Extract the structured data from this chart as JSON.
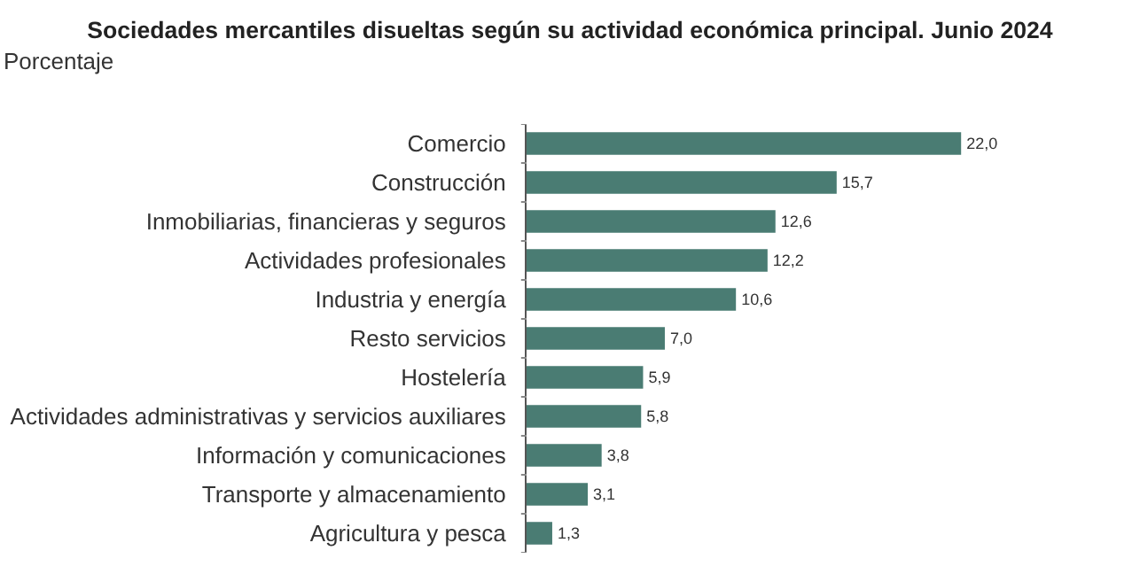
{
  "chart_data": {
    "type": "bar",
    "orientation": "horizontal",
    "title": "Sociedades mercantiles disueltas según su actividad económica principal. Junio 2024",
    "xlabel": "Porcentaje",
    "categories": [
      "Comercio",
      "Construcción",
      "Inmobiliarias, financieras y seguros",
      "Actividades profesionales",
      "Industria y energía",
      "Resto servicios",
      "Hostelería",
      "Actividades administrativas y servicios auxiliares",
      "Información y comunicaciones",
      "Transporte y almacenamiento",
      "Agricultura y pesca"
    ],
    "values": [
      22.0,
      15.7,
      12.6,
      12.2,
      10.6,
      7.0,
      5.9,
      5.8,
      3.8,
      3.1,
      1.3
    ],
    "value_labels": [
      "22,0",
      "15,7",
      "12,6",
      "12,2",
      "10,6",
      "7,0",
      "5,9",
      "5,8",
      "3,8",
      "3,1",
      "1,3"
    ],
    "color": "#4a7c73"
  }
}
